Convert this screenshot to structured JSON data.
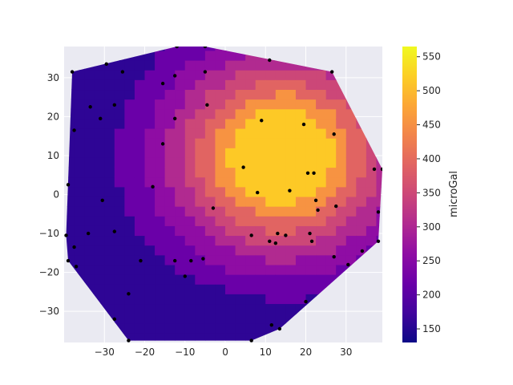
{
  "chart_data": {
    "type": "contour",
    "title": "",
    "xlabel": "",
    "ylabel": "",
    "xlim": [
      -40,
      39
    ],
    "ylim": [
      -38,
      38
    ],
    "x_ticks": [
      -30,
      -20,
      -10,
      0,
      10,
      20,
      30
    ],
    "y_ticks": [
      -30,
      -20,
      -10,
      0,
      10,
      20,
      30
    ],
    "grid": true,
    "colormap": "plasma",
    "colorbar": {
      "label": "microGal",
      "range": [
        130,
        565
      ],
      "ticks": [
        150,
        200,
        250,
        300,
        350,
        400,
        450,
        500,
        550
      ]
    },
    "contour_levels": [
      130,
      180,
      230,
      280,
      330,
      380,
      430,
      480,
      565
    ],
    "level_colors": [
      "#2e0595",
      "#6a00a8",
      "#8f0da4",
      "#b12a90",
      "#cc4778",
      "#e16462",
      "#f79342",
      "#fdc926"
    ],
    "points": [
      {
        "x": -38,
        "y": 31.5
      },
      {
        "x": -29.5,
        "y": 33.5
      },
      {
        "x": -25.5,
        "y": 31.5
      },
      {
        "x": -12.5,
        "y": 30.5
      },
      {
        "x": -15.5,
        "y": 28.5
      },
      {
        "x": -5,
        "y": 31.5
      },
      {
        "x": 11,
        "y": 34.5
      },
      {
        "x": 26.5,
        "y": 31.5
      },
      {
        "x": -33.5,
        "y": 22.5
      },
      {
        "x": -27.5,
        "y": 23
      },
      {
        "x": -4.5,
        "y": 23
      },
      {
        "x": -31,
        "y": 19.5
      },
      {
        "x": -12.5,
        "y": 19.5
      },
      {
        "x": 9,
        "y": 19
      },
      {
        "x": 19.5,
        "y": 18
      },
      {
        "x": -37.5,
        "y": 16.5
      },
      {
        "x": 27,
        "y": 15.5
      },
      {
        "x": -15.5,
        "y": 13
      },
      {
        "x": 4.5,
        "y": 7
      },
      {
        "x": 20.5,
        "y": 5.5
      },
      {
        "x": 22,
        "y": 5.5
      },
      {
        "x": 37,
        "y": 6.5
      },
      {
        "x": 39,
        "y": 6.5
      },
      {
        "x": -39,
        "y": 2.5
      },
      {
        "x": -18,
        "y": 2
      },
      {
        "x": 8,
        "y": 0.5
      },
      {
        "x": 16,
        "y": 1
      },
      {
        "x": -30.5,
        "y": -1.5
      },
      {
        "x": 22.5,
        "y": -1.5
      },
      {
        "x": -3,
        "y": -3.5
      },
      {
        "x": 27.5,
        "y": -3
      },
      {
        "x": 23,
        "y": -4
      },
      {
        "x": 38,
        "y": -4.5
      },
      {
        "x": -39.5,
        "y": -10.5
      },
      {
        "x": -34,
        "y": -10
      },
      {
        "x": -27.5,
        "y": -9.5
      },
      {
        "x": 6.5,
        "y": -10.5
      },
      {
        "x": 13,
        "y": -10
      },
      {
        "x": 15,
        "y": -10.5
      },
      {
        "x": 21,
        "y": -10
      },
      {
        "x": 11,
        "y": -12
      },
      {
        "x": 12.5,
        "y": -12.5
      },
      {
        "x": 21.5,
        "y": -12
      },
      {
        "x": 38,
        "y": -12
      },
      {
        "x": 34,
        "y": -14.5
      },
      {
        "x": -37.5,
        "y": -13.5
      },
      {
        "x": 27,
        "y": -16
      },
      {
        "x": -39,
        "y": -17
      },
      {
        "x": -21,
        "y": -17
      },
      {
        "x": -12.5,
        "y": -17
      },
      {
        "x": -8.5,
        "y": -17
      },
      {
        "x": -5.5,
        "y": -16.5
      },
      {
        "x": 30.5,
        "y": -18
      },
      {
        "x": -37,
        "y": -18.5
      },
      {
        "x": -10,
        "y": -21
      },
      {
        "x": -24,
        "y": -25.5
      },
      {
        "x": 20,
        "y": -27.5
      },
      {
        "x": -27.5,
        "y": -32
      },
      {
        "x": 11.5,
        "y": -33.5
      },
      {
        "x": 13.5,
        "y": -34.5
      },
      {
        "x": -24,
        "y": -37.5
      },
      {
        "x": 6.5,
        "y": -37.5
      },
      {
        "x": -12,
        "y": 38
      },
      {
        "x": -5,
        "y": 38
      }
    ]
  }
}
